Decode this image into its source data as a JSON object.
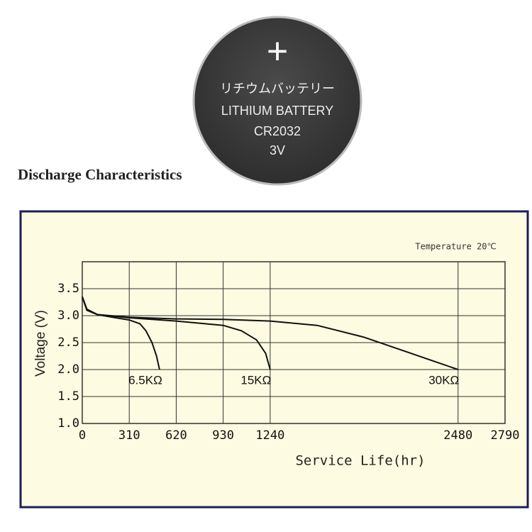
{
  "battery": {
    "symbol": "+",
    "lines": [
      "リチウムバッテリー",
      "LITHIUM BATTERY",
      "CR2032",
      "3V"
    ]
  },
  "heading": "Discharge Characteristics",
  "chart_data": {
    "type": "line",
    "annotation": "Temperature 20℃",
    "y_label": "Voltage (V)",
    "x_label": "Service Life(hr)",
    "xlim": [
      0,
      2790
    ],
    "xticks": [
      0,
      310,
      620,
      930,
      1240,
      2480,
      2790
    ],
    "ylim": [
      1,
      4
    ],
    "yticks": [
      {
        "value": 1,
        "label": "1.0"
      },
      1.5,
      {
        "value": 2,
        "label": "2.0"
      },
      2.5,
      {
        "value": 3,
        "label": "3.0"
      },
      3.5
    ],
    "grid": true,
    "series": [
      {
        "name": "6.5KΩ",
        "color": "#111111",
        "x": [
          0,
          30,
          100,
          200,
          310,
          380,
          420,
          460,
          490,
          510
        ],
        "values": [
          3.35,
          3.1,
          3.02,
          2.97,
          2.92,
          2.85,
          2.72,
          2.5,
          2.25,
          2.0
        ]
      },
      {
        "name": "15KΩ",
        "color": "#111111",
        "x": [
          0,
          30,
          100,
          310,
          620,
          930,
          1050,
          1150,
          1210,
          1240
        ],
        "values": [
          3.35,
          3.12,
          3.02,
          2.96,
          2.9,
          2.82,
          2.72,
          2.55,
          2.3,
          2.0
        ]
      },
      {
        "name": "30KΩ",
        "color": "#111111",
        "x": [
          0,
          30,
          100,
          310,
          620,
          930,
          1240,
          1550,
          1860,
          2170,
          2480
        ],
        "values": [
          3.35,
          3.12,
          3.02,
          2.97,
          2.94,
          2.93,
          2.9,
          2.82,
          2.6,
          2.3,
          2.0
        ]
      }
    ]
  }
}
